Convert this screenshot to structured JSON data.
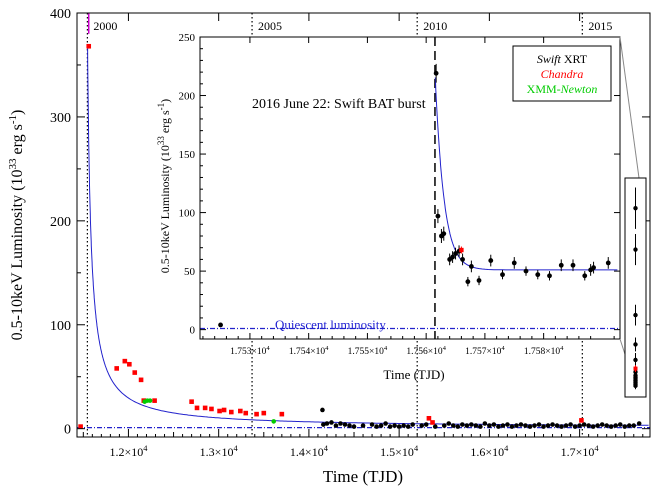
{
  "chart_data": [
    {
      "id": "main",
      "type": "scatter",
      "xlabel": "Time (TJD)",
      "ylabel": "0.5-10keV Luminosity (10³³ erg s⁻¹)",
      "ylabel_parts": {
        "a": "0.5-10keV Luminosity (10",
        "sup1": "33",
        "b": " erg s",
        "sup2": "-1",
        "c": ")"
      },
      "xlim": [
        11430,
        17780
      ],
      "ylim": [
        -8,
        400
      ],
      "xticks": [
        {
          "value": 12000,
          "mant": "1.2×10",
          "exp": "4"
        },
        {
          "value": 13000,
          "mant": "1.3×10",
          "exp": "4"
        },
        {
          "value": 14000,
          "mant": "1.4×10",
          "exp": "4"
        },
        {
          "value": 15000,
          "mant": "1.5×10",
          "exp": "4"
        },
        {
          "value": 16000,
          "mant": "1.6×10",
          "exp": "4"
        },
        {
          "value": 17000,
          "mant": "1.7×10",
          "exp": "4"
        }
      ],
      "yticks": [
        0,
        100,
        200,
        300,
        400
      ],
      "year_markers": [
        {
          "x": 11545,
          "label": "2000"
        },
        {
          "x": 13370,
          "label": "2005"
        },
        {
          "x": 15200,
          "label": "2010"
        },
        {
          "x": 17030,
          "label": "2015"
        }
      ],
      "quiescent_level": 1,
      "decay_model": {
        "t0": 11545,
        "amp": 370,
        "index": 1.0,
        "floor": 1
      },
      "outburst_marker": {
        "x": 11560,
        "y_top": 380
      },
      "series": [
        {
          "name": "Swift XRT",
          "color": "#000000",
          "marker": "circle",
          "points": [
            [
              14150,
              18
            ],
            [
              14160,
              4
            ],
            [
              14200,
              5
            ],
            [
              14250,
              6
            ],
            [
              14300,
              3
            ],
            [
              14350,
              5
            ],
            [
              14400,
              4
            ],
            [
              14450,
              3
            ],
            [
              14500,
              2
            ],
            [
              14600,
              3
            ],
            [
              14700,
              4
            ],
            [
              14750,
              2
            ],
            [
              14800,
              3
            ],
            [
              14850,
              5
            ],
            [
              14900,
              2
            ],
            [
              14950,
              3
            ],
            [
              15000,
              2
            ],
            [
              15050,
              3
            ],
            [
              15100,
              2
            ],
            [
              15150,
              4
            ],
            [
              15250,
              3
            ],
            [
              15300,
              4
            ],
            [
              15400,
              2
            ],
            [
              15500,
              3
            ],
            [
              15550,
              5
            ],
            [
              15600,
              3
            ],
            [
              15650,
              2
            ],
            [
              15700,
              4
            ],
            [
              15750,
              3
            ],
            [
              15800,
              4
            ],
            [
              15850,
              3
            ],
            [
              15900,
              2
            ],
            [
              15950,
              5
            ],
            [
              16000,
              3
            ],
            [
              16050,
              4
            ],
            [
              16100,
              2
            ],
            [
              16150,
              3
            ],
            [
              16200,
              4
            ],
            [
              16250,
              2
            ],
            [
              16300,
              3
            ],
            [
              16350,
              4
            ],
            [
              16400,
              3
            ],
            [
              16450,
              2
            ],
            [
              16500,
              3
            ],
            [
              16550,
              4
            ],
            [
              16600,
              2
            ],
            [
              16650,
              3
            ],
            [
              16700,
              4
            ],
            [
              16750,
              3
            ],
            [
              16800,
              2
            ],
            [
              16850,
              3
            ],
            [
              16900,
              4
            ],
            [
              16950,
              2
            ],
            [
              17000,
              3
            ],
            [
              17050,
              4
            ],
            [
              17100,
              3
            ],
            [
              17150,
              2
            ],
            [
              17200,
              3
            ],
            [
              17250,
              4
            ],
            [
              17300,
              3
            ],
            [
              17350,
              2
            ],
            [
              17400,
              3
            ],
            [
              17450,
              4
            ],
            [
              17500,
              2
            ],
            [
              17550,
              3
            ],
            [
              17600,
              3
            ],
            [
              17660,
              5
            ]
          ]
        },
        {
          "name": "Chandra",
          "color": "#ff0000",
          "marker": "square",
          "points": [
            [
              11470,
              2
            ],
            [
              11560,
              368
            ],
            [
              11870,
              58
            ],
            [
              11960,
              65
            ],
            [
              12010,
              62
            ],
            [
              12070,
              54
            ],
            [
              12140,
              47
            ],
            [
              12170,
              27
            ],
            [
              12290,
              27
            ],
            [
              12700,
              26
            ],
            [
              12760,
              20
            ],
            [
              12850,
              20
            ],
            [
              12920,
              19
            ],
            [
              13010,
              17
            ],
            [
              13060,
              18
            ],
            [
              13140,
              16
            ],
            [
              13240,
              17
            ],
            [
              13300,
              15
            ],
            [
              13420,
              14
            ],
            [
              13500,
              15
            ],
            [
              13700,
              14
            ],
            [
              15330,
              10
            ],
            [
              15370,
              6
            ],
            [
              17020,
              8
            ]
          ]
        },
        {
          "name": "XMM-Newton",
          "color": "#00cc00",
          "marker": "circle",
          "points": [
            [
              12180,
              26
            ],
            [
              12210,
              27
            ],
            [
              12240,
              27
            ],
            [
              13610,
              7
            ]
          ]
        }
      ]
    },
    {
      "id": "inset",
      "type": "scatter",
      "title": "2016 June 22: Swift BAT burst",
      "xlabel": "Time (TJD)",
      "ylabel": "0.5-10keV Luminosity (10³³ erg s⁻¹)",
      "ylabel_parts": {
        "a": "0.5-10keV Luminosity (10",
        "sup1": "33",
        "b": " erg s",
        "sup2": "-1",
        "c": ")"
      },
      "xlim": [
        17521.5,
        17593
      ],
      "ylim": [
        -8,
        250
      ],
      "xticks": [
        {
          "value": 17530,
          "mant": "1.753×10",
          "exp": "4"
        },
        {
          "value": 17540,
          "mant": "1.754×10",
          "exp": "4"
        },
        {
          "value": 17550,
          "mant": "1.755×10",
          "exp": "4"
        },
        {
          "value": 17560,
          "mant": "1.756×10",
          "exp": "4"
        },
        {
          "value": 17570,
          "mant": "1.757×10",
          "exp": "4"
        },
        {
          "value": 17580,
          "mant": "1.758×10",
          "exp": "4"
        }
      ],
      "yticks": [
        0,
        50,
        100,
        150,
        200,
        250
      ],
      "burst_time": 17561.5,
      "quiescent_level": 1,
      "quiescent_label": "Quiescent luminosity",
      "decay_model": {
        "t0": 17561.5,
        "floor": 51,
        "amp": 170,
        "tau": 1.5
      },
      "legend": [
        {
          "pre": "Swift",
          "post": " XRT",
          "color": "#000000"
        },
        {
          "pre": "Chandra",
          "post": "",
          "color": "#ff0000"
        },
        {
          "pre": "XMM-",
          "post": "Newton",
          "color": "#00cc00"
        }
      ],
      "series": [
        {
          "name": "Swift XRT",
          "color": "#000000",
          "points": [
            [
              17525,
              4,
              0
            ],
            [
              17561.7,
              219,
              8
            ],
            [
              17562.0,
              97,
              6
            ],
            [
              17562.6,
              80,
              6
            ],
            [
              17563.0,
              82,
              6
            ],
            [
              17564.0,
              60,
              5
            ],
            [
              17564.5,
              62,
              5
            ],
            [
              17565.0,
              65,
              5
            ],
            [
              17565.6,
              67,
              5
            ],
            [
              17566.2,
              60,
              5
            ],
            [
              17567.1,
              41,
              4
            ],
            [
              17567.7,
              54,
              5
            ],
            [
              17569.0,
              42,
              4
            ],
            [
              17571.0,
              59,
              5
            ],
            [
              17573.0,
              47,
              4
            ],
            [
              17575.0,
              57,
              5
            ],
            [
              17577.0,
              50,
              4
            ],
            [
              17579.0,
              47,
              4
            ],
            [
              17581.0,
              46,
              4
            ],
            [
              17583.0,
              55,
              5
            ],
            [
              17585.0,
              55,
              5
            ],
            [
              17587.0,
              46,
              4
            ],
            [
              17588.0,
              51,
              5
            ],
            [
              17588.5,
              53,
              5
            ],
            [
              17591.0,
              57,
              5
            ]
          ]
        },
        {
          "name": "Chandra",
          "color": "#ff0000",
          "points": [
            [
              17566.0,
              68,
              3
            ]
          ]
        }
      ]
    },
    {
      "id": "zoom-strip",
      "type": "scatter",
      "ylim": [
        0,
        120
      ],
      "series": [
        {
          "name": "Swift XRT",
          "color": "#000000",
          "points": [
            [
              0.5,
              106,
              12
            ],
            [
              0.5,
              82,
              9
            ],
            [
              0.5,
              44,
              6
            ],
            [
              0.5,
              27,
              4
            ],
            [
              0.5,
              18,
              4
            ],
            [
              0.5,
              11,
              3
            ],
            [
              0.5,
              9,
              3
            ],
            [
              0.5,
              8,
              2
            ],
            [
              0.5,
              7,
              2
            ],
            [
              0.5,
              6,
              2
            ],
            [
              0.5,
              5,
              2
            ],
            [
              0.5,
              4,
              2
            ],
            [
              0.5,
              3,
              2
            ]
          ]
        },
        {
          "name": "Chandra",
          "color": "#ff0000",
          "points": [
            [
              0.5,
              13,
              2
            ]
          ]
        }
      ]
    }
  ]
}
